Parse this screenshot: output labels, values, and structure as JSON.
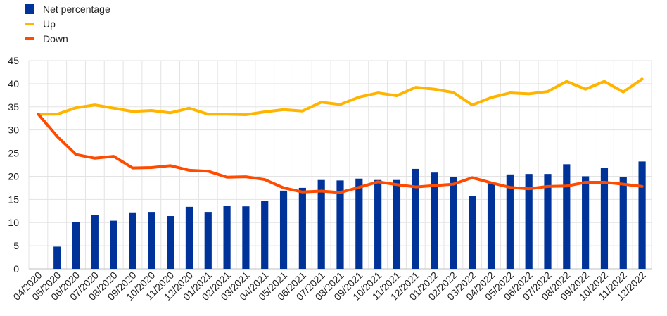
{
  "chart_data": {
    "type": "bar+line",
    "title": "",
    "xlabel": "",
    "ylabel": "",
    "ylim": [
      0,
      45
    ],
    "yticks": [
      0,
      5,
      10,
      15,
      20,
      25,
      30,
      35,
      40,
      45
    ],
    "grid": true,
    "legend_position": "top-left",
    "categories": [
      "04/2020",
      "05/2020",
      "06/2020",
      "07/2020",
      "08/2020",
      "09/2020",
      "10/2020",
      "11/2020",
      "12/2020",
      "01/2021",
      "02/2021",
      "03/2021",
      "04/2021",
      "05/2021",
      "06/2021",
      "07/2021",
      "08/2021",
      "09/2021",
      "10/2021",
      "11/2021",
      "12/2021",
      "01/2022",
      "02/2022",
      "03/2022",
      "04/2022",
      "05/2022",
      "06/2022",
      "07/2022",
      "08/2022",
      "09/2022",
      "10/2022",
      "11/2022",
      "12/2022"
    ],
    "series": [
      {
        "name": "Net percentage",
        "kind": "bar",
        "color": "#003399",
        "values": [
          0,
          4.8,
          10.1,
          11.6,
          10.4,
          12.2,
          12.3,
          11.4,
          13.4,
          12.3,
          13.6,
          13.5,
          14.6,
          16.9,
          17.5,
          19.2,
          19.1,
          19.5,
          19.2,
          19.2,
          21.6,
          20.8,
          19.8,
          15.7,
          18.6,
          20.4,
          20.5,
          20.5,
          22.6,
          20.0,
          21.8,
          19.9,
          23.2
        ]
      },
      {
        "name": "Up",
        "kind": "line",
        "color": "#FFB400",
        "values": [
          33.4,
          33.4,
          34.8,
          35.4,
          34.7,
          34.0,
          34.2,
          33.7,
          34.7,
          33.4,
          33.4,
          33.3,
          33.9,
          34.4,
          34.1,
          36.0,
          35.5,
          37.1,
          38.0,
          37.4,
          39.2,
          38.8,
          38.1,
          35.4,
          37.0,
          38.0,
          37.8,
          38.3,
          40.5,
          38.8,
          40.5,
          38.2,
          41.0
        ]
      },
      {
        "name": "Down",
        "kind": "line",
        "color": "#FF4B00",
        "values": [
          33.4,
          28.6,
          24.7,
          23.9,
          24.3,
          21.8,
          21.9,
          22.3,
          21.3,
          21.1,
          19.8,
          19.9,
          19.3,
          17.5,
          16.6,
          16.8,
          16.5,
          17.6,
          18.8,
          18.2,
          17.7,
          18.0,
          18.3,
          19.7,
          18.6,
          17.6,
          17.3,
          17.8,
          17.9,
          18.7,
          18.7,
          18.3,
          17.8
        ]
      }
    ]
  }
}
